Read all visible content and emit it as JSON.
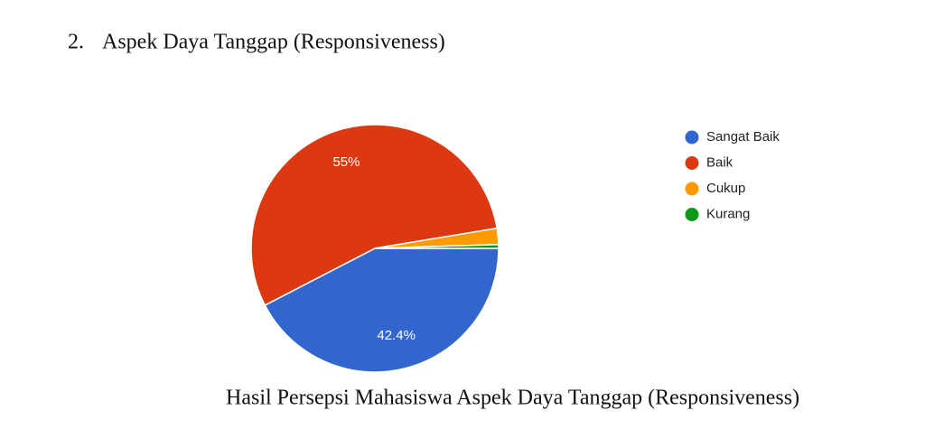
{
  "heading_number": "2.",
  "heading": "Aspek Daya Tanggap (Responsiveness)",
  "caption": "Hasil Persepsi Mahasiswa Aspek Daya Tanggap (Responsiveness)",
  "chart_data": {
    "type": "pie",
    "categories": [
      "Sangat Baik",
      "Baik",
      "Cukup",
      "Kurang"
    ],
    "values": [
      42.4,
      55,
      2.1,
      0.5
    ],
    "value_labels": [
      "42.4%",
      "55%",
      null,
      null
    ],
    "colors": [
      "#3366cc",
      "#dc3912",
      "#ff9900",
      "#109618"
    ],
    "legend": "right"
  }
}
